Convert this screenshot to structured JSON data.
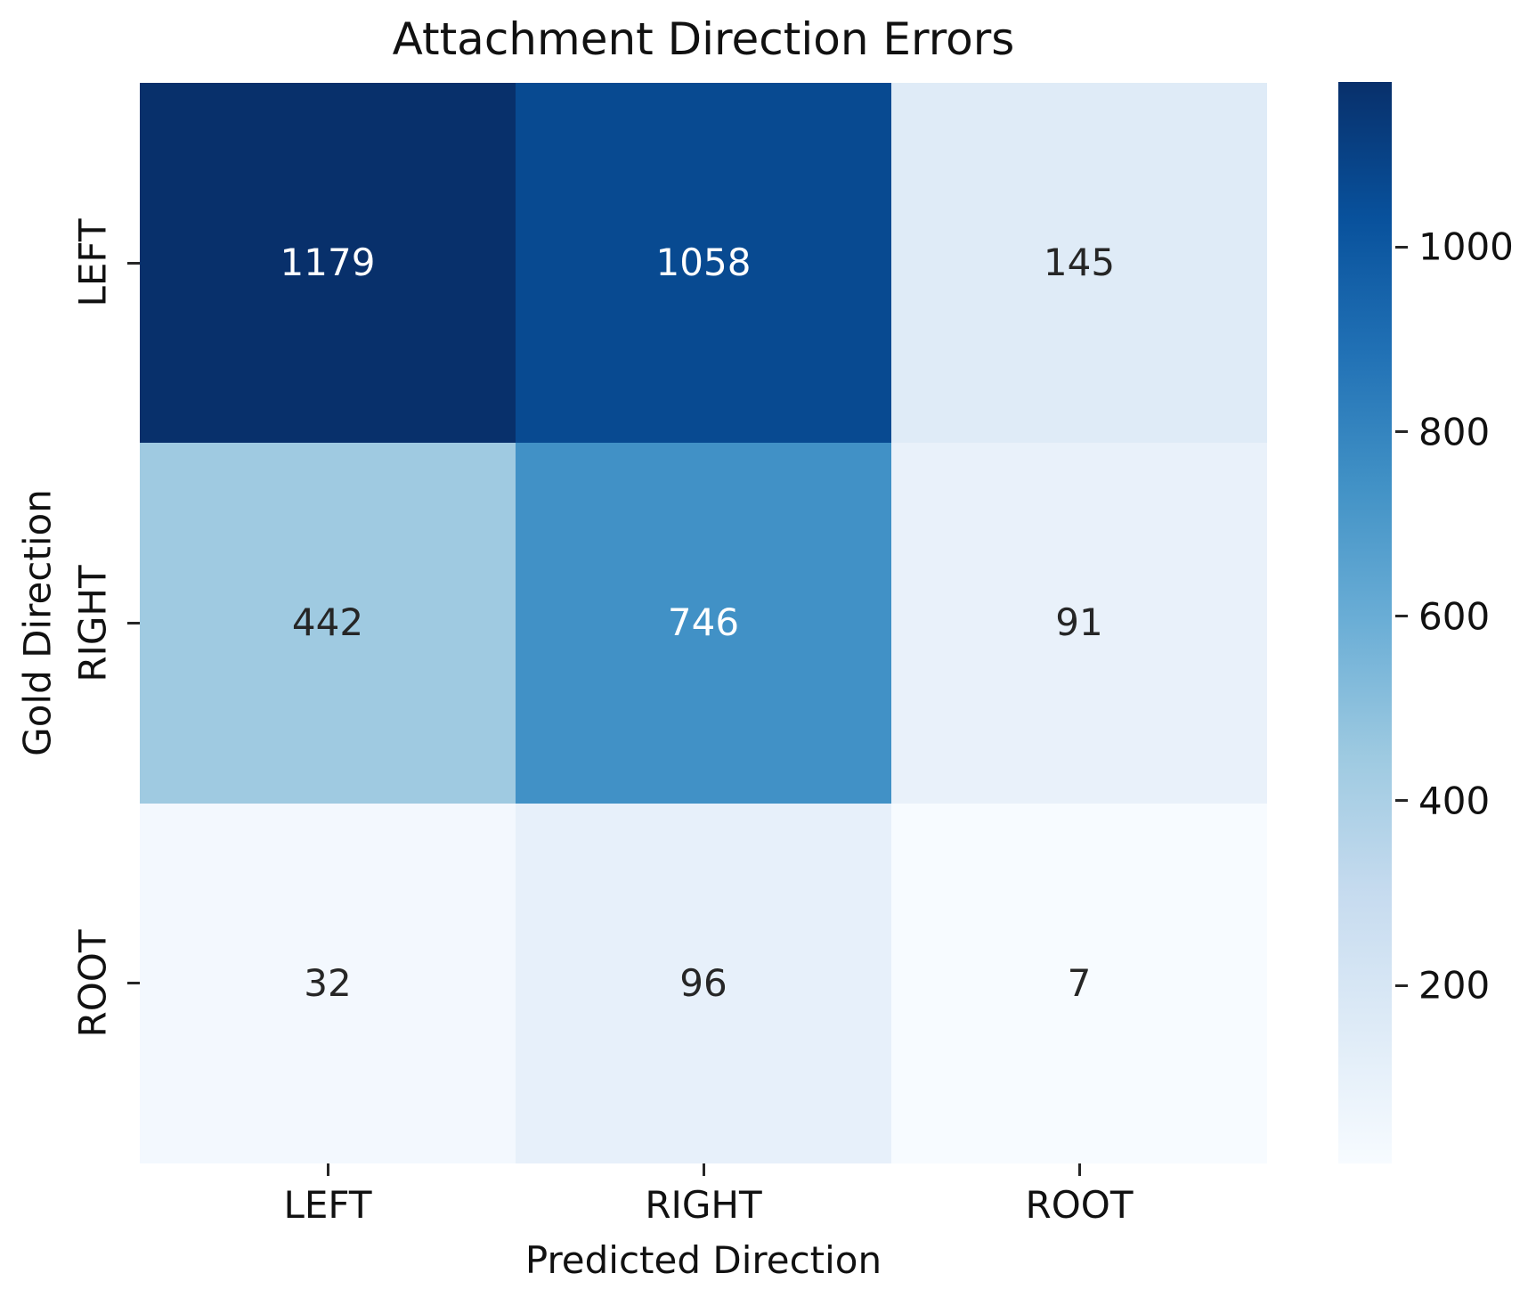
{
  "chart_data": {
    "type": "heatmap",
    "title": "Attachment Direction Errors",
    "xlabel": "Predicted Direction",
    "ylabel": "Gold Direction",
    "x_categories": [
      "LEFT",
      "RIGHT",
      "ROOT"
    ],
    "y_categories": [
      "LEFT",
      "RIGHT",
      "ROOT"
    ],
    "values": [
      [
        1179,
        1058,
        145
      ],
      [
        442,
        746,
        91
      ],
      [
        32,
        96,
        7
      ]
    ],
    "cell_colors": [
      [
        "#08306b",
        "#084a91",
        "#dfebf7"
      ],
      [
        "#9fcae1",
        "#4191c6",
        "#e9f1fa"
      ],
      [
        "#f3f8fe",
        "#e7f0fa",
        "#f7fbff"
      ]
    ],
    "cell_text_colors": [
      [
        "#ffffff",
        "#ffffff",
        "#262626"
      ],
      [
        "#262626",
        "#ffffff",
        "#262626"
      ],
      [
        "#262626",
        "#262626",
        "#262626"
      ]
    ],
    "legend_position": "right",
    "grid": false,
    "colorbar": {
      "vmin": 7,
      "vmax": 1179,
      "ticks": [
        200,
        400,
        600,
        800,
        1000
      ],
      "cmap_name": "Blues",
      "gradient_stops_top_to_bottom": [
        "#08306b",
        "#08519c",
        "#2171b5",
        "#4292c6",
        "#6baed6",
        "#9ecae1",
        "#c6dbef",
        "#deebf7",
        "#f7fbff"
      ]
    }
  }
}
